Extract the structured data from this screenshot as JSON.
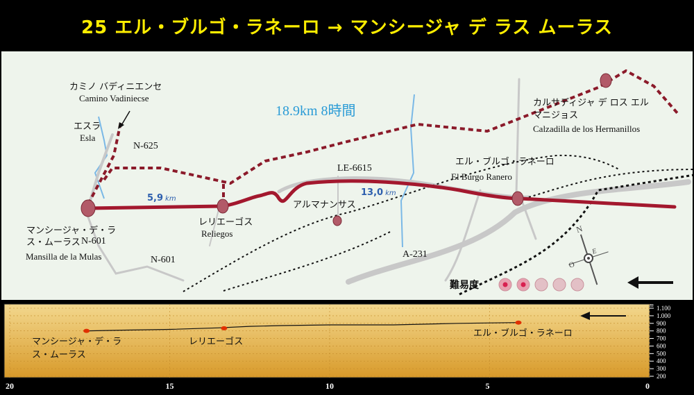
{
  "title": "25 エル・ブルゴ・ラネーロ → マンシージャ デ ラス ムーラス",
  "map": {
    "summary": "18.9km 8時間",
    "places": {
      "mansilla_jp": "マンシージャ・デ・ラ\nス・ムーラス",
      "mansilla_es": "Mansilla de la Mulas",
      "reliegos_jp": "レリエーゴス",
      "reliegos_es": "Reliegos",
      "almanansas_jp": "アルマナンサス",
      "burgo_jp": "エル・ブルゴ・ラネーロ",
      "burgo_es": "El Burgo Ranero",
      "calzadilla_jp": "カルサディジャ デ ロス エル\nマニジョス",
      "calzadilla_es": "Calzadilla de los Hermanillos",
      "vadiniecse_jp": "カミノ バディニエンセ",
      "vadiniecse_es": "Camino Vadiniecse",
      "esla_jp": "エスラ",
      "esla_es": "Esla"
    },
    "roads": {
      "n625": "N-625",
      "n601a": "N-601",
      "n601b": "N-601",
      "le6615": "LE-6615",
      "a231": "A-231"
    },
    "distances": {
      "seg1_value": "5,9",
      "seg1_unit": "km",
      "seg2_value": "13,0",
      "seg2_unit": "km"
    },
    "difficulty": {
      "label": "難易度",
      "level": 2,
      "max": 5
    },
    "compass": {
      "n": "N",
      "o": "O",
      "e": "E"
    },
    "colors": {
      "route": "#a3182e",
      "alt_route": "#8b1a2a",
      "road": "#c8c8c8",
      "river": "#7ab8e6",
      "summary": "#2a9bd6",
      "distance": "#2d5fae",
      "background": "#eef4ec"
    }
  },
  "profile": {
    "x_ticks": [
      "20",
      "15",
      "10",
      "5",
      "0"
    ],
    "y_unit": "m",
    "y_ticks": [
      "1.100",
      "1.000",
      "900",
      "800",
      "700",
      "600",
      "500",
      "400",
      "300",
      "200"
    ],
    "labels": {
      "mansilla": "マンシージャ・デ・ラ\nス・ムーラス",
      "reliegos": "レリエーゴス",
      "burgo": "エル・ブルゴ・ラネーロ"
    },
    "colors": {
      "band_top": "#f3d88e",
      "band_bottom": "#d89a2a",
      "marker": "#e03000"
    }
  },
  "chart_data": {
    "type": "line",
    "title": "",
    "xlabel": "",
    "ylabel": "m",
    "xlim": [
      20,
      0
    ],
    "ylim": [
      200,
      1100
    ],
    "x": [
      17.6,
      16.5,
      15,
      13.5,
      12.5,
      11.5,
      10,
      8,
      6,
      5,
      4.1
    ],
    "y": [
      800,
      810,
      820,
      840,
      860,
      870,
      880,
      880,
      900,
      905,
      910
    ],
    "markers": [
      {
        "x": 17.6,
        "y": 800
      },
      {
        "x": 13.3,
        "y": 835
      },
      {
        "x": 4.1,
        "y": 910
      }
    ]
  }
}
